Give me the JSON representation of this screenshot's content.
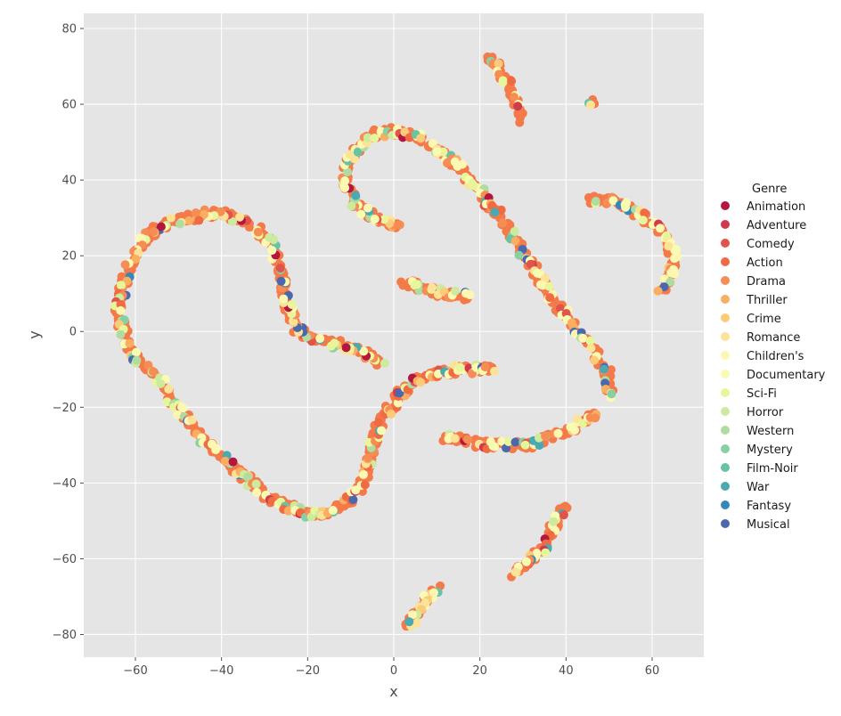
{
  "chart_data": {
    "type": "scatter",
    "title": "",
    "xlabel": "x",
    "ylabel": "y",
    "xlim": [
      -72,
      72
    ],
    "ylim": [
      -86,
      84
    ],
    "xticks": [
      -60,
      -40,
      -20,
      0,
      20,
      40,
      60
    ],
    "yticks": [
      -80,
      -60,
      -40,
      -20,
      0,
      20,
      40,
      60,
      80
    ],
    "grid": true,
    "legend": {
      "title": "Genre",
      "placement": "right",
      "entries": [
        {
          "name": "Animation",
          "color": "#b2173f"
        },
        {
          "name": "Adventure",
          "color": "#cf3a4c"
        },
        {
          "name": "Comedy",
          "color": "#e1544b"
        },
        {
          "name": "Action",
          "color": "#f06a43"
        },
        {
          "name": "Drama",
          "color": "#f68d55"
        },
        {
          "name": "Thriller",
          "color": "#f9ae62"
        },
        {
          "name": "Crime",
          "color": "#fccb7a"
        },
        {
          "name": "Romance",
          "color": "#fde398"
        },
        {
          "name": "Children's",
          "color": "#fef7b2"
        },
        {
          "name": "Documentary",
          "color": "#f8fbb2"
        },
        {
          "name": "Sci-Fi",
          "color": "#e7f59b"
        },
        {
          "name": "Horror",
          "color": "#cceb9e"
        },
        {
          "name": "Western",
          "color": "#aedca1"
        },
        {
          "name": "Mystery",
          "color": "#88cfa4"
        },
        {
          "name": "Film-Noir",
          "color": "#68c3a5"
        },
        {
          "name": "War",
          "color": "#4aa9b1"
        },
        {
          "name": "Fantasy",
          "color": "#3288bd"
        },
        {
          "name": "Musical",
          "color": "#4a68ad"
        }
      ]
    },
    "dense_series_color": "#f47a4a",
    "clusters": [
      {
        "points": [
          [
            -3,
            -8
          ],
          [
            -8,
            -5
          ],
          [
            -14,
            -3
          ],
          [
            -19,
            -2
          ],
          [
            -23,
            1
          ],
          [
            -24,
            5
          ],
          [
            -25,
            9
          ],
          [
            -26,
            14
          ],
          [
            -27,
            18
          ],
          [
            -28,
            22
          ],
          [
            -30,
            25
          ],
          [
            -33,
            28
          ],
          [
            -36,
            30
          ],
          [
            -40,
            31
          ],
          [
            -44,
            31
          ],
          [
            -48,
            30
          ],
          [
            -52,
            29
          ],
          [
            -55,
            27
          ],
          [
            -58,
            24
          ],
          [
            -60,
            20
          ],
          [
            -62,
            16
          ],
          [
            -63,
            11
          ],
          [
            -64,
            6
          ],
          [
            -63,
            1
          ],
          [
            -62,
            -3
          ],
          [
            -60,
            -7
          ],
          [
            -57,
            -10
          ],
          [
            -54,
            -13
          ],
          [
            -52,
            -17
          ],
          [
            -50,
            -21
          ],
          [
            -47,
            -25
          ],
          [
            -44,
            -29
          ],
          [
            -41,
            -32
          ],
          [
            -38,
            -35
          ],
          [
            -35,
            -38
          ],
          [
            -32,
            -41
          ],
          [
            -29,
            -44
          ],
          [
            -25,
            -46
          ],
          [
            -21,
            -48
          ],
          [
            -17,
            -48
          ],
          [
            -12,
            -46
          ],
          [
            -8,
            -42
          ],
          [
            -6,
            -37
          ],
          [
            -5,
            -31
          ],
          [
            -4,
            -26
          ],
          [
            -2,
            -22
          ],
          [
            0,
            -19
          ],
          [
            2,
            -16
          ],
          [
            4,
            -14
          ],
          [
            7,
            -12
          ],
          [
            11,
            -11
          ],
          [
            15,
            -10
          ],
          [
            19,
            -10
          ],
          [
            23,
            -10
          ]
        ]
      },
      {
        "points": [
          [
            1,
            28
          ],
          [
            -5,
            30
          ],
          [
            -9,
            34
          ],
          [
            -11,
            38
          ],
          [
            -11,
            43
          ],
          [
            -9,
            48
          ],
          [
            -5,
            52
          ],
          [
            0,
            53
          ],
          [
            6,
            51
          ],
          [
            11,
            47
          ],
          [
            16,
            42
          ],
          [
            20,
            37
          ],
          [
            24,
            31
          ],
          [
            28,
            25
          ],
          [
            31,
            19
          ],
          [
            34,
            14
          ],
          [
            37,
            9
          ],
          [
            40,
            4
          ],
          [
            43,
            0
          ],
          [
            46,
            -4
          ],
          [
            48,
            -8
          ],
          [
            50,
            -12
          ],
          [
            50,
            -17
          ]
        ]
      },
      {
        "points": [
          [
            12,
            -28
          ],
          [
            17,
            -29
          ],
          [
            22,
            -30
          ],
          [
            27,
            -30
          ],
          [
            32,
            -30
          ],
          [
            36,
            -28
          ],
          [
            40,
            -26
          ],
          [
            44,
            -24
          ],
          [
            47,
            -22
          ]
        ]
      },
      {
        "points": [
          [
            2,
            13
          ],
          [
            7,
            11
          ],
          [
            12,
            10
          ],
          [
            17,
            9
          ]
        ]
      },
      {
        "points": [
          [
            46,
            35
          ],
          [
            52,
            34
          ],
          [
            57,
            31
          ],
          [
            61,
            28
          ],
          [
            64,
            24
          ],
          [
            65,
            19
          ],
          [
            64,
            14
          ],
          [
            62,
            11
          ]
        ]
      },
      {
        "points": [
          [
            40,
            -46
          ],
          [
            38,
            -50
          ],
          [
            36,
            -54
          ],
          [
            34,
            -58
          ],
          [
            31,
            -61
          ],
          [
            28,
            -64
          ]
        ]
      },
      {
        "points": [
          [
            22,
            73
          ],
          [
            24,
            70
          ],
          [
            26,
            66
          ],
          [
            28,
            61
          ],
          [
            30,
            56
          ]
        ]
      },
      {
        "points": [
          [
            46,
            61
          ],
          [
            47,
            60
          ]
        ]
      },
      {
        "points": [
          [
            10,
            -68
          ],
          [
            3,
            -78
          ]
        ]
      }
    ]
  }
}
